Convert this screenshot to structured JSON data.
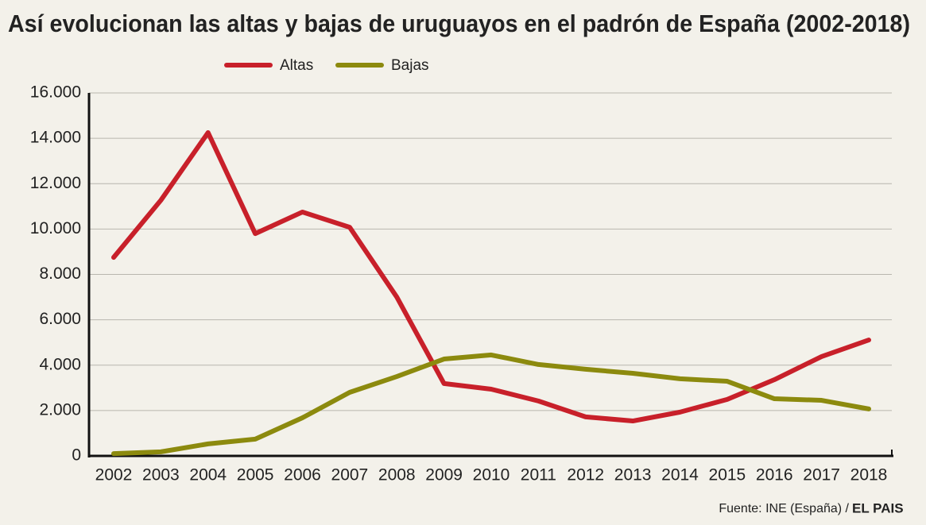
{
  "chart_data": {
    "type": "line",
    "title": "Así evolucionan las altas y bajas de uruguayos en el padrón de España (2002-2018)",
    "source": "Fuente: INE (España) /",
    "brand": "EL PAIS",
    "categories": [
      "2002",
      "2003",
      "2004",
      "2005",
      "2006",
      "2007",
      "2008",
      "2009",
      "2010",
      "2011",
      "2012",
      "2013",
      "2014",
      "2015",
      "2016",
      "2017",
      "2018"
    ],
    "series": [
      {
        "name": "Altas",
        "color": "#c8202a",
        "values": [
          8750,
          11270,
          14250,
          9800,
          10750,
          10080,
          7000,
          3190,
          2940,
          2420,
          1720,
          1540,
          1930,
          2490,
          3360,
          4380,
          5110
        ]
      },
      {
        "name": "Bajas",
        "color": "#8c8a0e",
        "values": [
          100,
          180,
          530,
          740,
          1680,
          2800,
          3500,
          4270,
          4450,
          4030,
          3820,
          3640,
          3400,
          3290,
          2520,
          2450,
          2070
        ]
      }
    ],
    "ylim": [
      0,
      16000
    ],
    "yticks": [
      0,
      {
        "value": 2000,
        "label": "2.000"
      },
      {
        "value": 4000,
        "label": "4.000"
      },
      {
        "value": 6000,
        "label": "6.000"
      },
      {
        "value": 8000,
        "label": "8.000"
      },
      {
        "value": 10000,
        "label": "10.000"
      },
      {
        "value": 12000,
        "label": "12.000"
      },
      {
        "value": 14000,
        "label": "14.000"
      },
      {
        "value": 16000,
        "label": "16.000"
      }
    ],
    "grid": true,
    "legend": "top"
  }
}
